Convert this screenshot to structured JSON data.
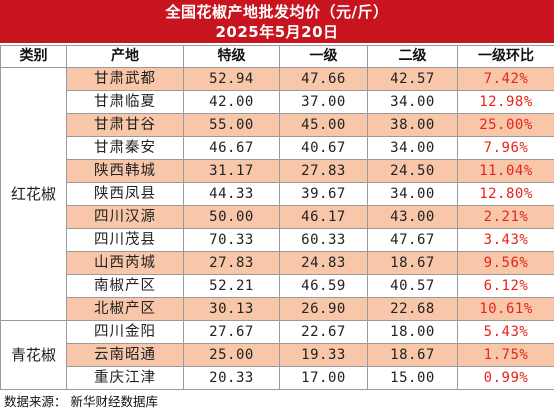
{
  "title": {
    "line1": "全国花椒产地批发均价（元/斤）",
    "line2": "2025年5月20日"
  },
  "headers": [
    "类别",
    "产地",
    "特级",
    "一级",
    "二级",
    "一级环比"
  ],
  "categories": {
    "red": "红花椒",
    "green": "青花椒"
  },
  "rows": [
    {
      "origin": "甘肃武都",
      "special": "52.94",
      "first": "47.66",
      "second": "42.57",
      "change": "7.42%"
    },
    {
      "origin": "甘肃临夏",
      "special": "42.00",
      "first": "37.00",
      "second": "34.00",
      "change": "12.98%"
    },
    {
      "origin": "甘肃甘谷",
      "special": "55.00",
      "first": "45.00",
      "second": "38.00",
      "change": "25.00%"
    },
    {
      "origin": "甘肃秦安",
      "special": "46.67",
      "first": "40.67",
      "second": "34.00",
      "change": "7.96%"
    },
    {
      "origin": "陕西韩城",
      "special": "31.17",
      "first": "27.83",
      "second": "24.50",
      "change": "11.04%"
    },
    {
      "origin": "陕西凤县",
      "special": "44.33",
      "first": "39.67",
      "second": "34.00",
      "change": "12.80%"
    },
    {
      "origin": "四川汉源",
      "special": "50.00",
      "first": "46.17",
      "second": "43.00",
      "change": "2.21%"
    },
    {
      "origin": "四川茂县",
      "special": "70.33",
      "first": "60.33",
      "second": "47.67",
      "change": "3.43%"
    },
    {
      "origin": "山西芮城",
      "special": "27.83",
      "first": "24.83",
      "second": "18.67",
      "change": "9.56%"
    },
    {
      "origin": "南椒产区",
      "special": "52.21",
      "first": "46.59",
      "second": "40.57",
      "change": "6.12%"
    },
    {
      "origin": "北椒产区",
      "special": "30.13",
      "first": "26.90",
      "second": "22.68",
      "change": "10.61%"
    },
    {
      "origin": "四川金阳",
      "special": "27.67",
      "first": "22.67",
      "second": "18.00",
      "change": "5.43%"
    },
    {
      "origin": "云南昭通",
      "special": "25.00",
      "first": "19.33",
      "second": "18.67",
      "change": "1.75%"
    },
    {
      "origin": "重庆江津",
      "special": "20.33",
      "first": "17.00",
      "second": "15.00",
      "change": "0.99%"
    }
  ],
  "source": {
    "label": "数据来源：",
    "value": "新华财经数据库"
  },
  "colors": {
    "title_bg": "#c8141e",
    "band": "#f8c7a9",
    "change_text": "#e8231c"
  }
}
